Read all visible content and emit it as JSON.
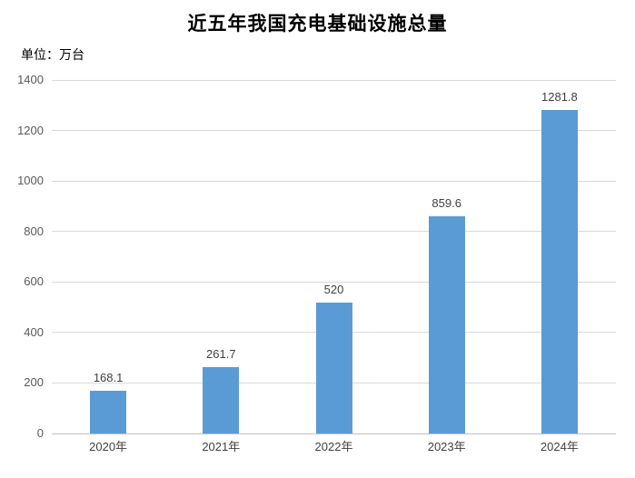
{
  "title": "近五年我国充电基础设施总量",
  "unit_label": "单位：万台",
  "colors": {
    "bar": "#5b9bd5",
    "gridline": "#d9d9d9",
    "axis_line": "#bfbfbf",
    "y_tick_label": "#595959",
    "x_tick_label": "#404040",
    "value_label": "#404040",
    "title": "#000000",
    "background": "#ffffff"
  },
  "chart_data": {
    "type": "bar",
    "title": "近五年我国充电基础设施总量",
    "unit": "万台",
    "categories": [
      "2020年",
      "2021年",
      "2022年",
      "2023年",
      "2024年"
    ],
    "values": [
      168.1,
      261.7,
      520,
      859.6,
      1281.8
    ],
    "value_labels": [
      "168.1",
      "261.7",
      "520",
      "859.6",
      "1281.8"
    ],
    "xlabel": "",
    "ylabel": "单位：万台",
    "ylim": [
      0,
      1400
    ],
    "yticks": [
      0,
      200,
      400,
      600,
      800,
      1000,
      1200,
      1400
    ],
    "grid": true,
    "legend": false
  }
}
